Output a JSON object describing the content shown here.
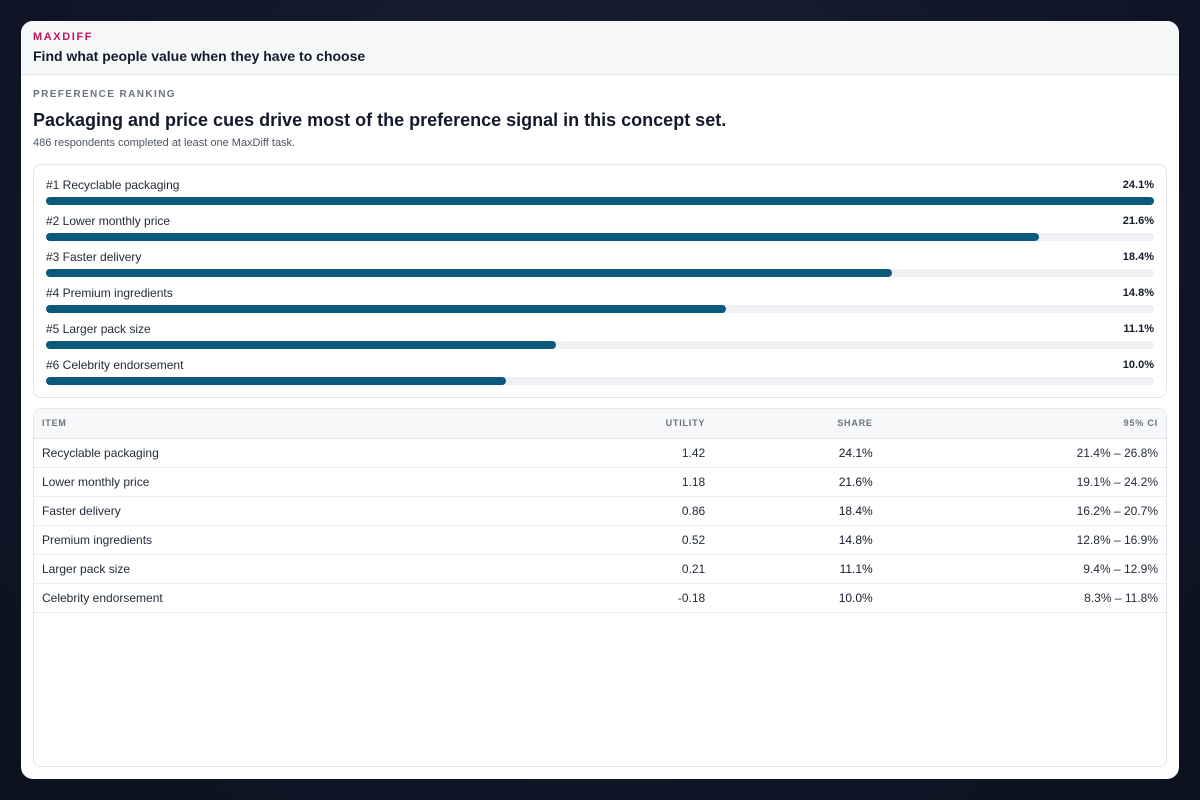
{
  "header": {
    "eyebrow": "MAXDIFF",
    "title": "Find what people value when they have to choose"
  },
  "section": {
    "label": "PREFERENCE RANKING",
    "headline": "Packaging and price cues drive most of the preference signal in this concept set.",
    "subtext": "486 respondents completed at least one MaxDiff task."
  },
  "colors": {
    "bar": "#0b5a7e",
    "track": "#eef0f3",
    "accent": "#c2185b"
  },
  "ranking": [
    {
      "label": "#1 Recyclable packaging",
      "value": "24.1%",
      "share": 24.1
    },
    {
      "label": "#2 Lower monthly price",
      "value": "21.6%",
      "share": 21.6
    },
    {
      "label": "#3 Faster delivery",
      "value": "18.4%",
      "share": 18.4
    },
    {
      "label": "#4 Premium ingredients",
      "value": "14.8%",
      "share": 14.8
    },
    {
      "label": "#5 Larger pack size",
      "value": "11.1%",
      "share": 11.1
    },
    {
      "label": "#6 Celebrity endorsement",
      "value": "10.0%",
      "share": 10.0
    }
  ],
  "table": {
    "columns": {
      "item": "ITEM",
      "utility": "UTILITY",
      "share": "SHARE",
      "ci": "95% CI"
    },
    "rows": [
      {
        "item": "Recyclable packaging",
        "utility": "1.42",
        "share": "24.1%",
        "ci": "21.4% – 26.8%"
      },
      {
        "item": "Lower monthly price",
        "utility": "1.18",
        "share": "21.6%",
        "ci": "19.1% – 24.2%"
      },
      {
        "item": "Faster delivery",
        "utility": "0.86",
        "share": "18.4%",
        "ci": "16.2% – 20.7%"
      },
      {
        "item": "Premium ingredients",
        "utility": "0.52",
        "share": "14.8%",
        "ci": "12.8% – 16.9%"
      },
      {
        "item": "Larger pack size",
        "utility": "0.21",
        "share": "11.1%",
        "ci": "9.4% – 12.9%"
      },
      {
        "item": "Celebrity endorsement",
        "utility": "-0.18",
        "share": "10.0%",
        "ci": "8.3% – 11.8%"
      }
    ]
  }
}
